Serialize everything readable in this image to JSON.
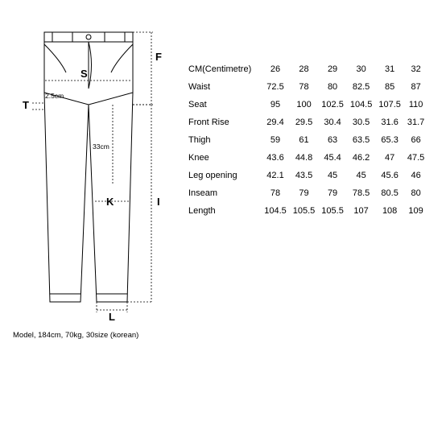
{
  "diagram": {
    "type": "infographic",
    "stroke_color": "#000000",
    "stroke_width": 1,
    "dash_pattern": "2 2",
    "background_color": "#ffffff",
    "labels": {
      "S": "S",
      "F": "F",
      "T": "T",
      "K": "K",
      "I": "I",
      "L": "L",
      "thigh_cm": "33cm",
      "t_cm": "2.5cm"
    },
    "model_note": "Model, 184cm, 70kg, 30size (korean)"
  },
  "table": {
    "type": "table",
    "header_row": [
      "CM(Centimetre)",
      "26",
      "28",
      "29",
      "30",
      "31",
      "32"
    ],
    "rows": [
      [
        "Waist",
        "72.5",
        "78",
        "80",
        "82.5",
        "85",
        "87"
      ],
      [
        "Seat",
        "95",
        "100",
        "102.5",
        "104.5",
        "107.5",
        "110"
      ],
      [
        "Front Rise",
        "29.4",
        "29.5",
        "30.4",
        "30.5",
        "31.6",
        "31.7"
      ],
      [
        "Thigh",
        "59",
        "61",
        "63",
        "63.5",
        "65.3",
        "66"
      ],
      [
        "Knee",
        "43.6",
        "44.8",
        "45.4",
        "46.2",
        "47",
        "47.5"
      ],
      [
        "Leg opening",
        "42.1",
        "43.5",
        "45",
        "45",
        "45.6",
        "46"
      ],
      [
        "Inseam",
        "78",
        "79",
        "79",
        "78.5",
        "80.5",
        "80"
      ],
      [
        "Length",
        "104.5",
        "105.5",
        "105.5",
        "107",
        "108",
        "109"
      ]
    ],
    "font_size": 11,
    "text_color": "#000000",
    "cell_padding": 5
  }
}
